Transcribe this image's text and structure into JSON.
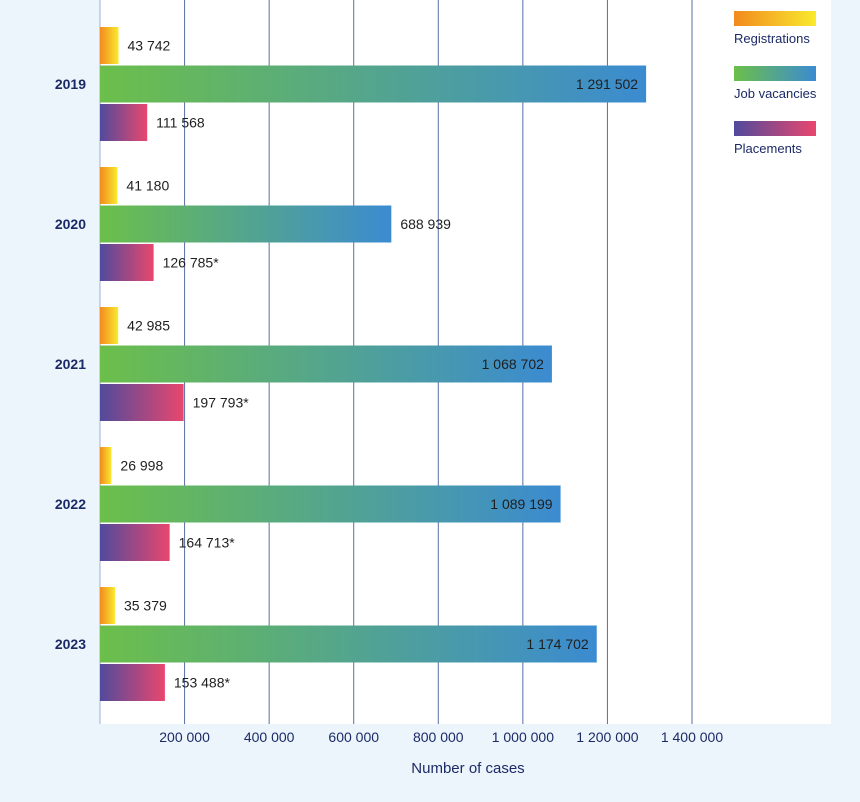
{
  "chart_data": {
    "type": "bar",
    "orientation": "horizontal",
    "categories": [
      "2019",
      "2020",
      "2021",
      "2022",
      "2023"
    ],
    "series": [
      {
        "name": "Registrations",
        "values": [
          43742,
          41180,
          42985,
          26998,
          35379
        ],
        "labels": [
          "43 742",
          "41 180",
          "42 985",
          "26 998",
          "35 379"
        ],
        "gradient": [
          "#f28a1e",
          "#f9ea2e"
        ]
      },
      {
        "name": "Job vacancies",
        "values": [
          1291502,
          688939,
          1068702,
          1089199,
          1174702
        ],
        "labels": [
          "1 291 502",
          "688 939",
          "1 068 702",
          "1 089 199",
          "1 174 702"
        ],
        "gradient": [
          "#6cbf4a",
          "#3b8bd1"
        ]
      },
      {
        "name": "Placements",
        "values": [
          111568,
          126785,
          197793,
          164713,
          153488
        ],
        "labels": [
          "111 568",
          "126 785*",
          "197 793*",
          "164 713*",
          "153 488*"
        ],
        "gradient": [
          "#514a9c",
          "#e8476e"
        ]
      }
    ],
    "xticks": [
      "200 000",
      "400 000",
      "600 000",
      "800 000",
      "1 000 000",
      "1 200 000",
      "1 400 000"
    ],
    "xtick_values": [
      200000,
      400000,
      600000,
      800000,
      1000000,
      1200000,
      1400000
    ],
    "xlim": [
      0,
      1400000
    ],
    "xlabel": "Number of cases",
    "ylabel": "",
    "grid": true,
    "legend_position": "top-right",
    "colors": {
      "background": "#ecf5fc",
      "plot_background": "#ffffff",
      "text": "#1b2a66",
      "gridline": "#5a6fa8"
    }
  }
}
